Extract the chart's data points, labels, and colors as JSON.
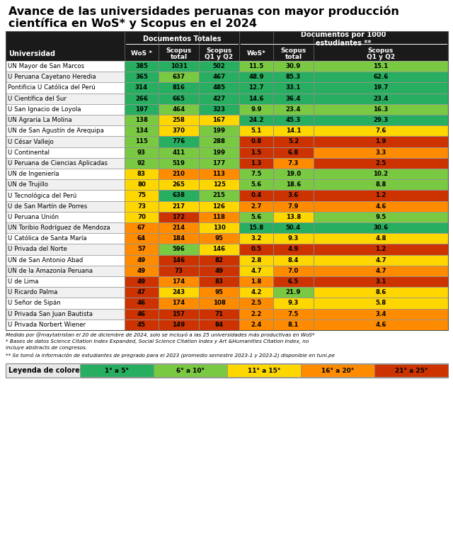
{
  "title_line1": "Avance de las universidades peruanas con mayor producción",
  "title_line2": "científica en WoS* y Scopus en el 2024",
  "universities": [
    "UN Mayor de San Marcos",
    "U Peruana Cayetano Heredia",
    "Pontificia U Católica del Perú",
    "U Científica del Sur",
    "U San Ignacio de Loyola",
    "UN Agraria La Molina",
    "UN de San Agustín de Arequipa",
    "U César Vallejo",
    "U Continental",
    "U Peruana de Ciencias Aplicadas",
    "UN de Ingeniería",
    "UN de Trujillo",
    "U Tecnológica del Perú",
    "U de San Martín de Porres",
    "U Peruana Unión",
    "UN Toribio Rodríguez de Mendoza",
    "U Católica de Santa María",
    "U Privada del Norte",
    "UN de San Antonio Abad",
    "UN de la Amazonía Peruana",
    "U de Lima",
    "U Ricardo Palma",
    "U Señor de Sipán",
    "U Privada San Juan Bautista",
    "U Privada Norbert Wiener"
  ],
  "wos_total": [
    385,
    365,
    314,
    266,
    197,
    138,
    134,
    115,
    93,
    92,
    83,
    80,
    75,
    73,
    70,
    67,
    64,
    57,
    49,
    49,
    49,
    47,
    46,
    46,
    45
  ],
  "scopus_total": [
    1031,
    637,
    816,
    665,
    464,
    258,
    370,
    776,
    411,
    519,
    210,
    265,
    638,
    217,
    172,
    214,
    184,
    596,
    146,
    73,
    174,
    243,
    174,
    157,
    149
  ],
  "scopus_q1q2": [
    502,
    467,
    485,
    427,
    323,
    167,
    199,
    288,
    199,
    177,
    113,
    125,
    215,
    126,
    118,
    130,
    95,
    146,
    82,
    49,
    83,
    95,
    108,
    71,
    84
  ],
  "wos_per1000": [
    11.5,
    48.9,
    12.7,
    14.6,
    9.9,
    24.2,
    5.1,
    0.8,
    1.5,
    1.3,
    7.5,
    5.6,
    0.4,
    2.7,
    5.6,
    15.8,
    3.2,
    0.5,
    2.8,
    4.7,
    1.8,
    4.2,
    2.5,
    2.2,
    2.4
  ],
  "scopus_total_per1000": [
    30.9,
    85.3,
    33.1,
    36.4,
    23.4,
    45.3,
    14.1,
    5.2,
    6.8,
    7.3,
    19.0,
    18.6,
    3.6,
    7.9,
    13.8,
    50.4,
    9.3,
    4.9,
    8.4,
    7.0,
    6.5,
    21.9,
    9.3,
    7.5,
    8.1
  ],
  "scopus_q1q2_per1000": [
    15.1,
    62.6,
    19.7,
    23.4,
    16.3,
    29.3,
    7.6,
    1.9,
    3.3,
    2.5,
    10.2,
    8.8,
    1.2,
    4.6,
    9.5,
    30.6,
    4.8,
    1.2,
    4.7,
    4.7,
    3.1,
    8.6,
    5.8,
    3.4,
    4.6
  ],
  "legend_labels": [
    "1° a 5°",
    "6° a 10°",
    "11° a 15°",
    "16° a 20°",
    "21° a 25°"
  ],
  "legend_colors": [
    "#27ae60",
    "#7ac943",
    "#FFD700",
    "#FF8C00",
    "#CC3300"
  ],
  "color_band1": "#27ae60",
  "color_band2": "#7ac943",
  "color_band3": "#FFD700",
  "color_band4": "#FF8C00",
  "color_band5": "#CC3300",
  "header_bg": "#1a1a1a",
  "footnotes": [
    "Medido por @maytatristan el 20 de diciembre de 2024, solo se incluyó a las 25 universidades más productivas en WoS*",
    "* Bases de datos Science Citation Index Expanded, Social Science Citation Index y Art &Humanities Citation Index, no",
    "incluye abstracts de congresos.",
    "** Se tomó la información de estudiantes de pregrado para el 2023 (promedio semestre 2023-1 y 2023-2) disponible en tuni.pe"
  ]
}
